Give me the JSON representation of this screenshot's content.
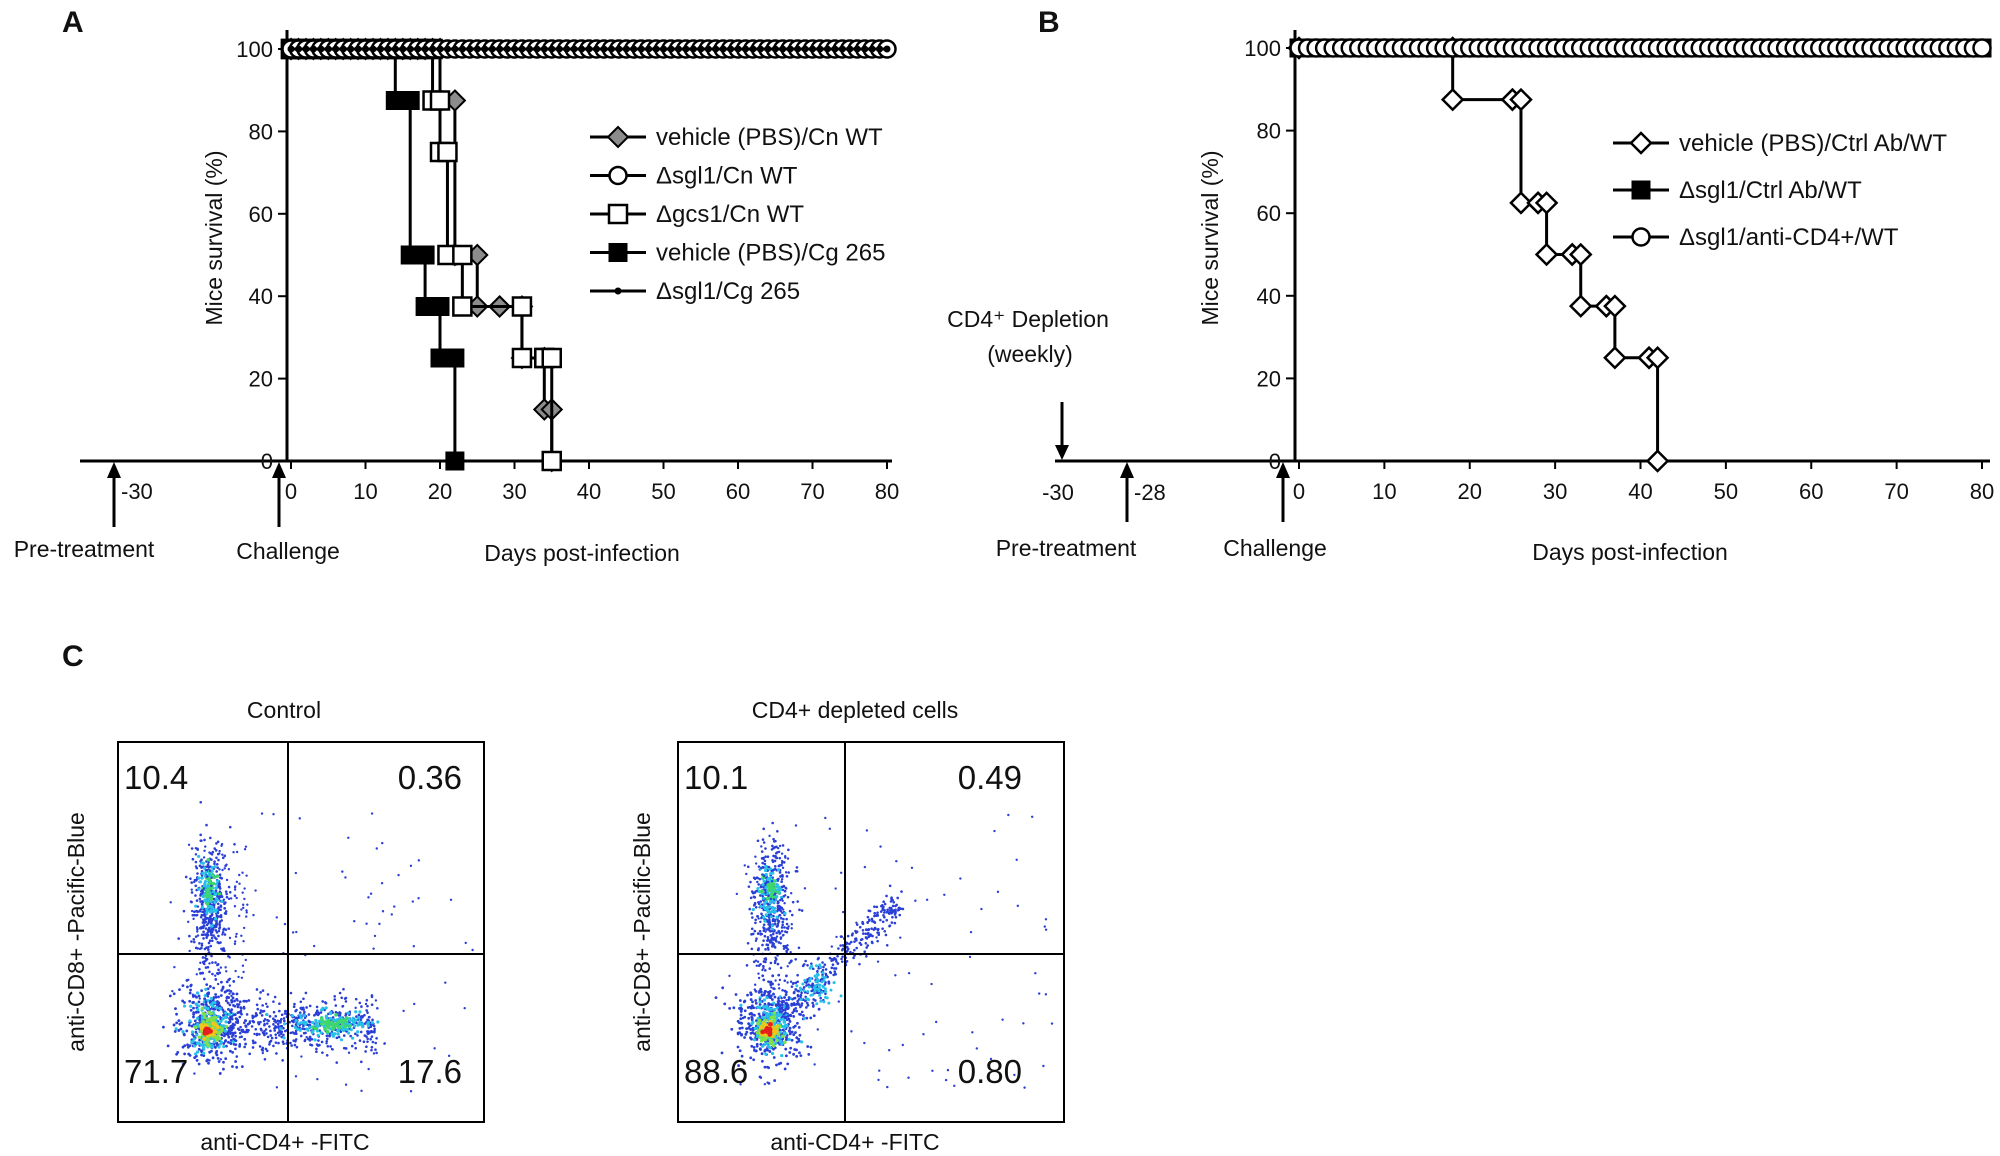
{
  "panels": {
    "a": "A",
    "b": "B",
    "c": "C"
  },
  "chart_data": [
    {
      "type": "line",
      "panel": "A",
      "ylabel": "Mice survival (%)",
      "xlabel": "Days post-infection",
      "xlim": [
        0,
        80
      ],
      "ylim": [
        0,
        100
      ],
      "xticks": [
        0,
        10,
        20,
        30,
        40,
        50,
        60,
        70,
        80
      ],
      "yticks": [
        0,
        20,
        40,
        60,
        80,
        100
      ],
      "timeline": {
        "pretreatment_day": "-30",
        "pretreatment_label": "Pre-treatment",
        "challenge_label": "Challenge"
      },
      "series": [
        {
          "name": "vehicle (PBS)/Cn WT",
          "marker": "diamond-gray",
          "x": [
            0,
            20,
            22,
            25,
            28,
            31,
            34,
            35
          ],
          "y": [
            100,
            87.5,
            50,
            37.5,
            37.5,
            25,
            12.5,
            0
          ]
        },
        {
          "name": "Δsgl1/Cn WT",
          "marker": "circle-open",
          "full": true,
          "x": [
            0,
            80
          ],
          "y": [
            100,
            100
          ]
        },
        {
          "name": "Δgcs1/Cn WT",
          "marker": "square-open",
          "x": [
            0,
            19,
            20,
            21,
            23,
            31,
            34,
            35
          ],
          "y": [
            100,
            87.5,
            75,
            50,
            37.5,
            25,
            25,
            0
          ]
        },
        {
          "name": "vehicle (PBS)/Cg 265",
          "marker": "square-filled",
          "x": [
            0,
            14,
            16,
            18,
            20,
            21,
            22
          ],
          "y": [
            100,
            87.5,
            50,
            37.5,
            25,
            25,
            0
          ]
        },
        {
          "name": "Δsgl1/Cg 265",
          "marker": "dot",
          "full": true,
          "x": [
            0,
            80
          ],
          "y": [
            100,
            100
          ]
        }
      ]
    },
    {
      "type": "line",
      "panel": "B",
      "ylabel": "Mice survival (%)",
      "xlabel": "Days post-infection",
      "xlim": [
        0,
        80
      ],
      "ylim": [
        0,
        100
      ],
      "xticks": [
        0,
        10,
        20,
        30,
        40,
        50,
        60,
        70,
        80
      ],
      "yticks": [
        0,
        20,
        40,
        60,
        80,
        100
      ],
      "timeline": {
        "depletion_label_1": "CD4⁺ Depletion",
        "depletion_label_2": "(weekly)",
        "depletion_day": "-30",
        "pretreatment_day": "-28",
        "pretreatment_label": "Pre-treatment",
        "challenge_label": "Challenge"
      },
      "series": [
        {
          "name": "vehicle (PBS)/Ctrl Ab/WT",
          "marker": "diamond-open",
          "x": [
            0,
            18,
            25,
            26,
            28,
            29,
            32,
            33,
            36,
            37,
            41,
            42
          ],
          "y": [
            100,
            87.5,
            87.5,
            62.5,
            62.5,
            50,
            50,
            37.5,
            37.5,
            25,
            25,
            0
          ]
        },
        {
          "name": "Δsgl1/Ctrl Ab/WT",
          "marker": "square-filled",
          "full": true,
          "x": [
            0,
            80
          ],
          "y": [
            100,
            100
          ]
        },
        {
          "name": "Δsgl1/anti-CD4+/WT",
          "marker": "circle-open",
          "full": true,
          "x": [
            0,
            80
          ],
          "y": [
            100,
            100
          ]
        }
      ]
    },
    {
      "type": "scatter",
      "panel": "C",
      "title": "Control",
      "xlabel": "anti-CD4+ -FITC",
      "ylabel": "anti-CD8+ -Pacific-Blue",
      "quadrants": {
        "top_left": "10.4",
        "top_right": "0.36",
        "bottom_left": "71.7",
        "bottom_right": "17.6"
      }
    },
    {
      "type": "scatter",
      "panel": "C",
      "title": "CD4+ depleted cells",
      "xlabel": "anti-CD4+ -FITC",
      "ylabel": "anti-CD8+ -Pacific-Blue",
      "quadrants": {
        "top_left": "10.1",
        "top_right": "0.49",
        "bottom_left": "88.6",
        "bottom_right": "0.80"
      }
    }
  ]
}
